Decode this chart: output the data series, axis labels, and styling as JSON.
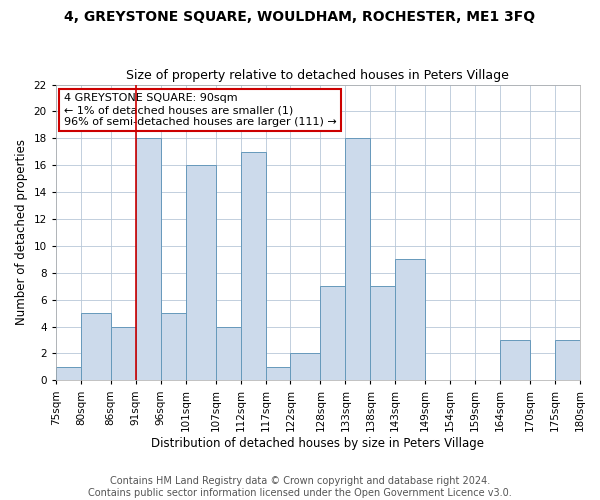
{
  "title": "4, GREYSTONE SQUARE, WOULDHAM, ROCHESTER, ME1 3FQ",
  "subtitle": "Size of property relative to detached houses in Peters Village",
  "xlabel": "Distribution of detached houses by size in Peters Village",
  "ylabel": "Number of detached properties",
  "bar_color": "#ccdaeb",
  "bar_edge_color": "#6699bb",
  "bin_edges": [
    75,
    80,
    86,
    91,
    96,
    101,
    107,
    112,
    117,
    122,
    128,
    133,
    138,
    143,
    149,
    154,
    159,
    164,
    170,
    175,
    180
  ],
  "bin_labels": [
    "75sqm",
    "80sqm",
    "86sqm",
    "91sqm",
    "96sqm",
    "101sqm",
    "107sqm",
    "112sqm",
    "117sqm",
    "122sqm",
    "128sqm",
    "133sqm",
    "138sqm",
    "143sqm",
    "149sqm",
    "154sqm",
    "159sqm",
    "164sqm",
    "170sqm",
    "175sqm",
    "180sqm"
  ],
  "bar_heights": [
    1,
    5,
    4,
    18,
    5,
    16,
    4,
    17,
    1,
    2,
    7,
    18,
    7,
    9,
    0,
    0,
    0,
    3,
    0,
    3
  ],
  "ylim": [
    0,
    22
  ],
  "yticks": [
    0,
    2,
    4,
    6,
    8,
    10,
    12,
    14,
    16,
    18,
    20,
    22
  ],
  "vline_x": 91,
  "vline_color": "#cc0000",
  "annotation_line1": "4 GREYSTONE SQUARE: 90sqm",
  "annotation_line2": "← 1% of detached houses are smaller (1)",
  "annotation_line3": "96% of semi-detached houses are larger (111) →",
  "background_color": "#ffffff",
  "grid_color": "#b8c8d8",
  "title_fontsize": 10,
  "subtitle_fontsize": 9,
  "axis_label_fontsize": 8.5,
  "tick_fontsize": 7.5,
  "annotation_fontsize": 8,
  "footer_fontsize": 7,
  "footer_line1": "Contains HM Land Registry data © Crown copyright and database right 2024.",
  "footer_line2": "Contains public sector information licensed under the Open Government Licence v3.0."
}
